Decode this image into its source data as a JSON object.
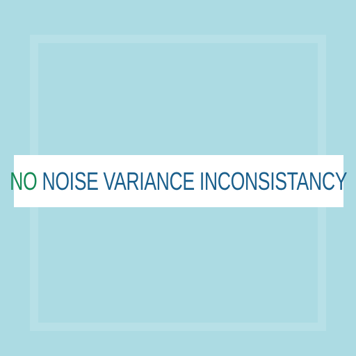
{
  "banner": {
    "accent_word": "NO",
    "rest_text": "NOISE VARIANCE INCONSISTANCY"
  },
  "colors": {
    "background": "#acdbe3",
    "accent_green": "#158a55",
    "text_blue": "#1a5f8c",
    "banner_white": "#ffffff"
  }
}
